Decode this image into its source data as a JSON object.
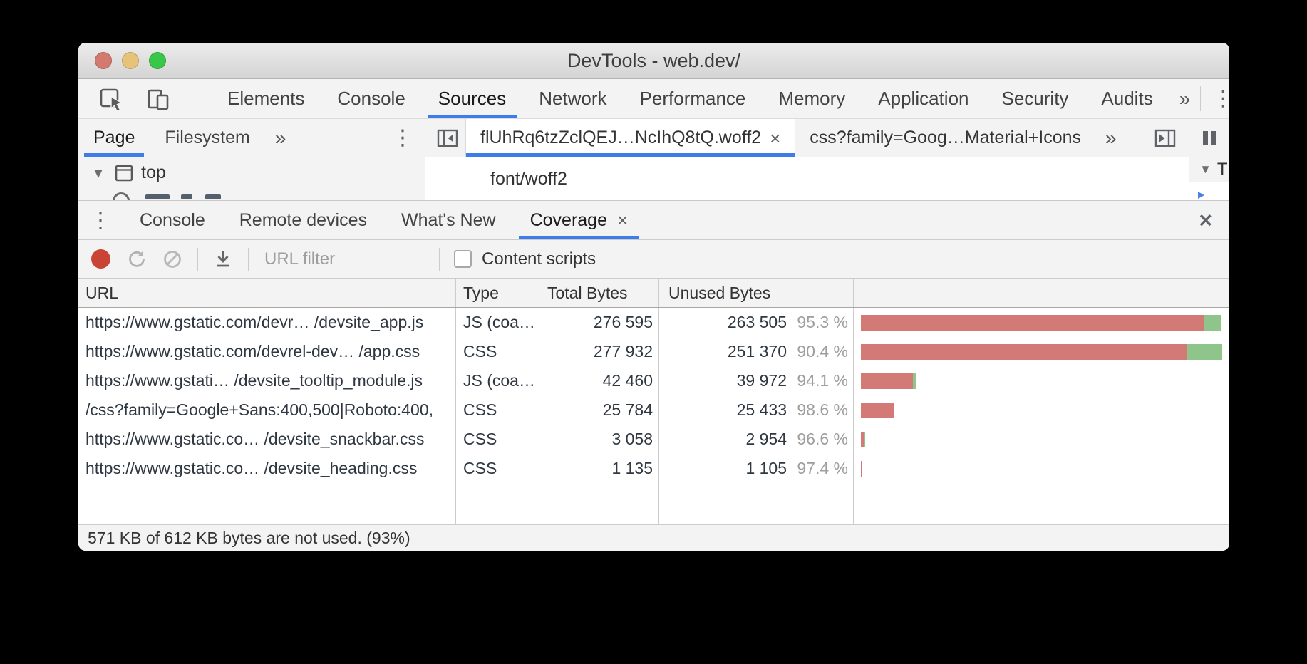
{
  "window": {
    "title": "DevTools - web.dev/"
  },
  "icons": {
    "more": "»",
    "kebab": "⋮",
    "close": "×",
    "tree_collapse": "▾",
    "section_collapse": "▼"
  },
  "panel_tabs": {
    "items": [
      "Elements",
      "Console",
      "Sources",
      "Network",
      "Performance",
      "Memory",
      "Application",
      "Security",
      "Audits"
    ],
    "selected": "Sources"
  },
  "navigator": {
    "tabs": [
      "Page",
      "Filesystem"
    ],
    "selected": "Page",
    "tree_root_label": "top"
  },
  "editor": {
    "tabs": [
      {
        "label": "flUhRq6tzZclQEJ…NcIhQ8tQ.woff2",
        "selected": true,
        "closable": true
      },
      {
        "label": "css?family=Goog…Material+Icons",
        "selected": false
      }
    ],
    "content_text": "font/woff2"
  },
  "debugger_sidebar": {
    "section_label": "Th"
  },
  "drawer": {
    "tabs": [
      "Console",
      "Remote devices",
      "What's New",
      "Coverage"
    ],
    "selected": "Coverage"
  },
  "coverage_toolbar": {
    "url_filter_placeholder": "URL filter",
    "content_scripts_label": "Content scripts",
    "content_scripts_checked": false
  },
  "coverage_table": {
    "columns": [
      "URL",
      "Type",
      "Total Bytes",
      "Unused Bytes"
    ],
    "bar_colors": {
      "unused": "#d47a76",
      "used": "#8fc48b"
    },
    "rows": [
      {
        "url": "https://www.gstatic.com/devr… /devsite_app.js",
        "type": "JS (coa…",
        "total_display": "276 595",
        "unused_display": "263 505",
        "unused_pct_display": "95.3 %",
        "total": 276595,
        "unused_pct": 95.3
      },
      {
        "url": "https://www.gstatic.com/devrel-dev… /app.css",
        "type": "CSS",
        "total_display": "277 932",
        "unused_display": "251 370",
        "unused_pct_display": "90.4 %",
        "total": 277932,
        "unused_pct": 90.4
      },
      {
        "url": "https://www.gstati… /devsite_tooltip_module.js",
        "type": "JS (coa…",
        "total_display": "42 460",
        "unused_display": "39 972",
        "unused_pct_display": "94.1 %",
        "total": 42460,
        "unused_pct": 94.1
      },
      {
        "url": "/css?family=Google+Sans:400,500|Roboto:400,",
        "type": "CSS",
        "total_display": "25 784",
        "unused_display": "25 433",
        "unused_pct_display": "98.6 %",
        "total": 25784,
        "unused_pct": 98.6
      },
      {
        "url": "https://www.gstatic.co… /devsite_snackbar.css",
        "type": "CSS",
        "total_display": "3 058",
        "unused_display": "2 954",
        "unused_pct_display": "96.6 %",
        "total": 3058,
        "unused_pct": 96.6
      },
      {
        "url": "https://www.gstatic.co…  /devsite_heading.css",
        "type": "CSS",
        "total_display": "1 135",
        "unused_display": "1 105",
        "unused_pct_display": "97.4 %",
        "total": 1135,
        "unused_pct": 97.4
      }
    ]
  },
  "status_bar": {
    "text": "571 KB of 612 KB bytes are not used. (93%)"
  }
}
